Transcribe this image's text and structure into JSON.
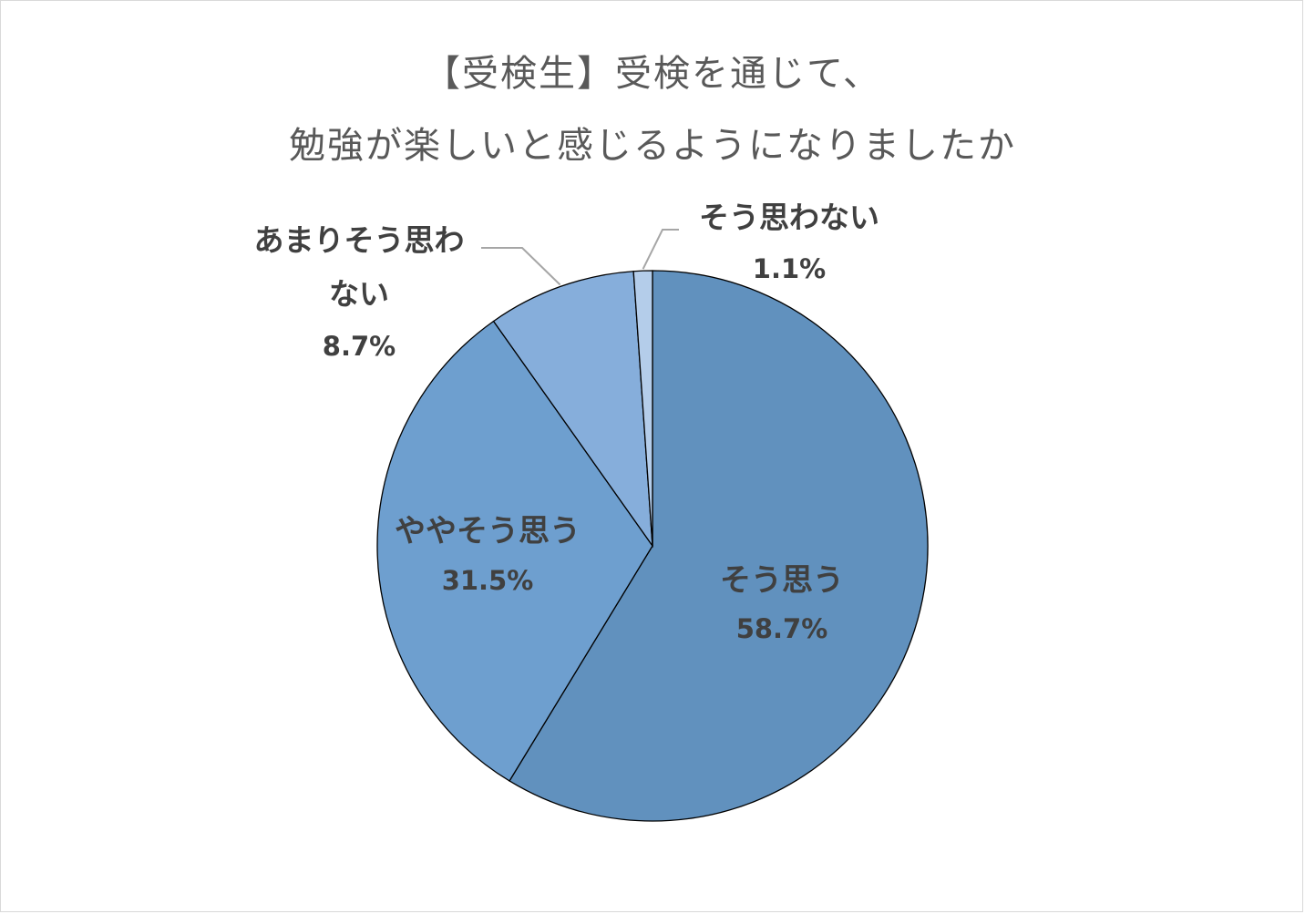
{
  "chart_data": {
    "type": "pie",
    "title": "【受検生】受検を通じて、",
    "subtitle": "勉強が楽しいと感じるようになりましたか",
    "slices": [
      {
        "label": "そう思う",
        "value": 58.7,
        "display": "58.7%",
        "color": "#6191be"
      },
      {
        "label": "ややそう思う",
        "value": 31.5,
        "display": "31.5%",
        "color": "#6e9fcf"
      },
      {
        "label": "あまりそう思わない",
        "label_lines": [
          "あまりそう思わ",
          "ない"
        ],
        "value": 8.7,
        "display": "8.7%",
        "color": "#86aedb"
      },
      {
        "label": "そう思わない",
        "value": 1.1,
        "display": "1.1%",
        "color": "#b4cdea"
      }
    ],
    "start_angle": "12 o'clock",
    "direction": "clockwise",
    "legend": "none",
    "slice_border_color": "#000000",
    "leader_line_color": "#a6a6a6"
  }
}
